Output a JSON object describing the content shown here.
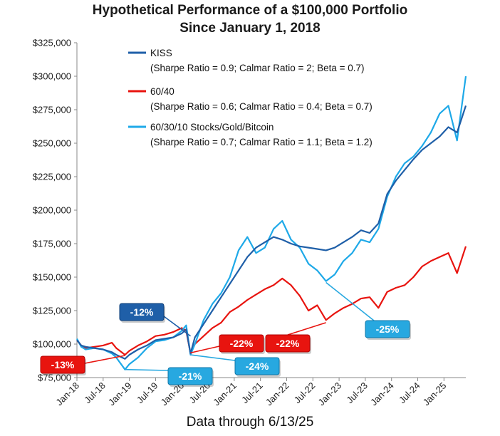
{
  "chart_data": {
    "type": "line",
    "title_line1": "Hypothetical Performance of a $100,000 Portfolio",
    "title_line2": "Since January 1, 2018",
    "footer": "Data through 6/13/25",
    "y_ticks": [
      "$75,000",
      "$100,000",
      "$125,000",
      "$150,000",
      "$175,000",
      "$200,000",
      "$225,000",
      "$250,000",
      "$275,000",
      "$300,000",
      "$325,000"
    ],
    "ylim": [
      75000,
      325000
    ],
    "x_tick_labels": [
      "Jan-18",
      "Jul-18",
      "Jan-19",
      "Jul-19",
      "Jan-20",
      "Jul-20",
      "Jan-21",
      "Jul-21",
      "Jan-22",
      "Jul-22",
      "Jan-23",
      "Jul-23",
      "Jan-24",
      "Jul-24",
      "Jan-25"
    ],
    "xlim": [
      "2018-01",
      "2025-06"
    ],
    "grid": false,
    "legend_position": "top-left",
    "series": [
      {
        "name": "KISS",
        "stats": "(Sharpe Ratio = 0.9; Calmar Ratio = 2; Beta = 0.7)",
        "color": "#1f5fa8",
        "points": [
          [
            "2018-01",
            103000
          ],
          [
            "2018-02",
            99000
          ],
          [
            "2018-03",
            98000
          ],
          [
            "2018-05",
            97000
          ],
          [
            "2018-07",
            96000
          ],
          [
            "2018-09",
            94000
          ],
          [
            "2018-10",
            92000
          ],
          [
            "2018-12",
            89000
          ],
          [
            "2019-01",
            92000
          ],
          [
            "2019-03",
            96000
          ],
          [
            "2019-05",
            99000
          ],
          [
            "2019-07",
            103000
          ],
          [
            "2019-09",
            104000
          ],
          [
            "2019-11",
            105000
          ],
          [
            "2020-01",
            108000
          ],
          [
            "2020-02",
            111000
          ],
          [
            "2020-03",
            93000
          ],
          [
            "2020-04",
            105000
          ],
          [
            "2020-06",
            115000
          ],
          [
            "2020-08",
            125000
          ],
          [
            "2020-10",
            135000
          ],
          [
            "2020-12",
            145000
          ],
          [
            "2021-02",
            155000
          ],
          [
            "2021-04",
            165000
          ],
          [
            "2021-06",
            172000
          ],
          [
            "2021-08",
            176000
          ],
          [
            "2021-10",
            180000
          ],
          [
            "2021-12",
            178000
          ],
          [
            "2022-02",
            175000
          ],
          [
            "2022-04",
            173000
          ],
          [
            "2022-06",
            172000
          ],
          [
            "2022-08",
            171000
          ],
          [
            "2022-10",
            170000
          ],
          [
            "2022-12",
            172000
          ],
          [
            "2023-02",
            176000
          ],
          [
            "2023-04",
            180000
          ],
          [
            "2023-06",
            185000
          ],
          [
            "2023-08",
            183000
          ],
          [
            "2023-10",
            190000
          ],
          [
            "2023-12",
            212000
          ],
          [
            "2024-02",
            222000
          ],
          [
            "2024-04",
            230000
          ],
          [
            "2024-06",
            238000
          ],
          [
            "2024-08",
            245000
          ],
          [
            "2024-10",
            250000
          ],
          [
            "2024-12",
            255000
          ],
          [
            "2025-02",
            262000
          ],
          [
            "2025-04",
            258000
          ],
          [
            "2025-06",
            278000
          ]
        ]
      },
      {
        "name": "60/40",
        "stats": "(Sharpe Ratio = 0.6; Calmar Ratio = 0.4; Beta = 0.7)",
        "color": "#e8140f",
        "points": [
          [
            "2018-01",
            103000
          ],
          [
            "2018-02",
            99000
          ],
          [
            "2018-03",
            97000
          ],
          [
            "2018-05",
            98000
          ],
          [
            "2018-07",
            99000
          ],
          [
            "2018-09",
            101000
          ],
          [
            "2018-10",
            97000
          ],
          [
            "2018-12",
            92000
          ],
          [
            "2019-01",
            95000
          ],
          [
            "2019-03",
            99000
          ],
          [
            "2019-05",
            102000
          ],
          [
            "2019-07",
            106000
          ],
          [
            "2019-09",
            107000
          ],
          [
            "2019-11",
            109000
          ],
          [
            "2020-01",
            112000
          ],
          [
            "2020-02",
            110000
          ],
          [
            "2020-03",
            93000
          ],
          [
            "2020-04",
            100000
          ],
          [
            "2020-06",
            106000
          ],
          [
            "2020-08",
            112000
          ],
          [
            "2020-10",
            116000
          ],
          [
            "2020-12",
            124000
          ],
          [
            "2021-02",
            128000
          ],
          [
            "2021-04",
            133000
          ],
          [
            "2021-06",
            137000
          ],
          [
            "2021-08",
            141000
          ],
          [
            "2021-10",
            144000
          ],
          [
            "2021-12",
            149000
          ],
          [
            "2022-02",
            144000
          ],
          [
            "2022-04",
            136000
          ],
          [
            "2022-06",
            125000
          ],
          [
            "2022-08",
            129000
          ],
          [
            "2022-10",
            118000
          ],
          [
            "2022-12",
            123000
          ],
          [
            "2023-02",
            127000
          ],
          [
            "2023-04",
            130000
          ],
          [
            "2023-06",
            134000
          ],
          [
            "2023-08",
            135000
          ],
          [
            "2023-10",
            127000
          ],
          [
            "2023-12",
            139000
          ],
          [
            "2024-02",
            142000
          ],
          [
            "2024-04",
            144000
          ],
          [
            "2024-06",
            150000
          ],
          [
            "2024-08",
            158000
          ],
          [
            "2024-10",
            162000
          ],
          [
            "2024-12",
            165000
          ],
          [
            "2025-02",
            168000
          ],
          [
            "2025-04",
            153000
          ],
          [
            "2025-06",
            173000
          ]
        ]
      },
      {
        "name": "60/30/10 Stocks/Gold/Bitcoin",
        "stats": "(Sharpe Ratio = 0.7; Calmar Ratio = 1.1; Beta = 1.2)",
        "color": "#1ea9e8",
        "points": [
          [
            "2018-01",
            104000
          ],
          [
            "2018-02",
            98000
          ],
          [
            "2018-03",
            96000
          ],
          [
            "2018-05",
            97000
          ],
          [
            "2018-07",
            96000
          ],
          [
            "2018-09",
            93000
          ],
          [
            "2018-10",
            90000
          ],
          [
            "2018-12",
            81000
          ],
          [
            "2019-01",
            85000
          ],
          [
            "2019-03",
            90000
          ],
          [
            "2019-05",
            97000
          ],
          [
            "2019-07",
            102000
          ],
          [
            "2019-09",
            103000
          ],
          [
            "2019-11",
            105000
          ],
          [
            "2020-01",
            110000
          ],
          [
            "2020-02",
            114000
          ],
          [
            "2020-03",
            92000
          ],
          [
            "2020-04",
            100000
          ],
          [
            "2020-06",
            118000
          ],
          [
            "2020-08",
            130000
          ],
          [
            "2020-10",
            138000
          ],
          [
            "2020-12",
            150000
          ],
          [
            "2021-02",
            170000
          ],
          [
            "2021-04",
            180000
          ],
          [
            "2021-06",
            168000
          ],
          [
            "2021-08",
            172000
          ],
          [
            "2021-10",
            186000
          ],
          [
            "2021-12",
            192000
          ],
          [
            "2022-02",
            178000
          ],
          [
            "2022-04",
            172000
          ],
          [
            "2022-06",
            160000
          ],
          [
            "2022-08",
            155000
          ],
          [
            "2022-10",
            147000
          ],
          [
            "2022-12",
            152000
          ],
          [
            "2023-02",
            162000
          ],
          [
            "2023-04",
            168000
          ],
          [
            "2023-06",
            178000
          ],
          [
            "2023-08",
            176000
          ],
          [
            "2023-10",
            186000
          ],
          [
            "2023-12",
            210000
          ],
          [
            "2024-02",
            225000
          ],
          [
            "2024-04",
            235000
          ],
          [
            "2024-06",
            240000
          ],
          [
            "2024-08",
            248000
          ],
          [
            "2024-10",
            258000
          ],
          [
            "2024-12",
            272000
          ],
          [
            "2025-02",
            278000
          ],
          [
            "2025-04",
            252000
          ],
          [
            "2025-06",
            300000
          ]
        ]
      }
    ],
    "annotations": [
      {
        "label": "-12%",
        "style": "dark-blue"
      },
      {
        "label": "-13%",
        "style": "red"
      },
      {
        "label": "-21%",
        "style": "light-blue"
      },
      {
        "label": "-22%",
        "style": "red"
      },
      {
        "label": "-24%",
        "style": "light-blue"
      },
      {
        "label": "-22%",
        "style": "red"
      },
      {
        "label": "-25%",
        "style": "light-blue"
      }
    ]
  }
}
